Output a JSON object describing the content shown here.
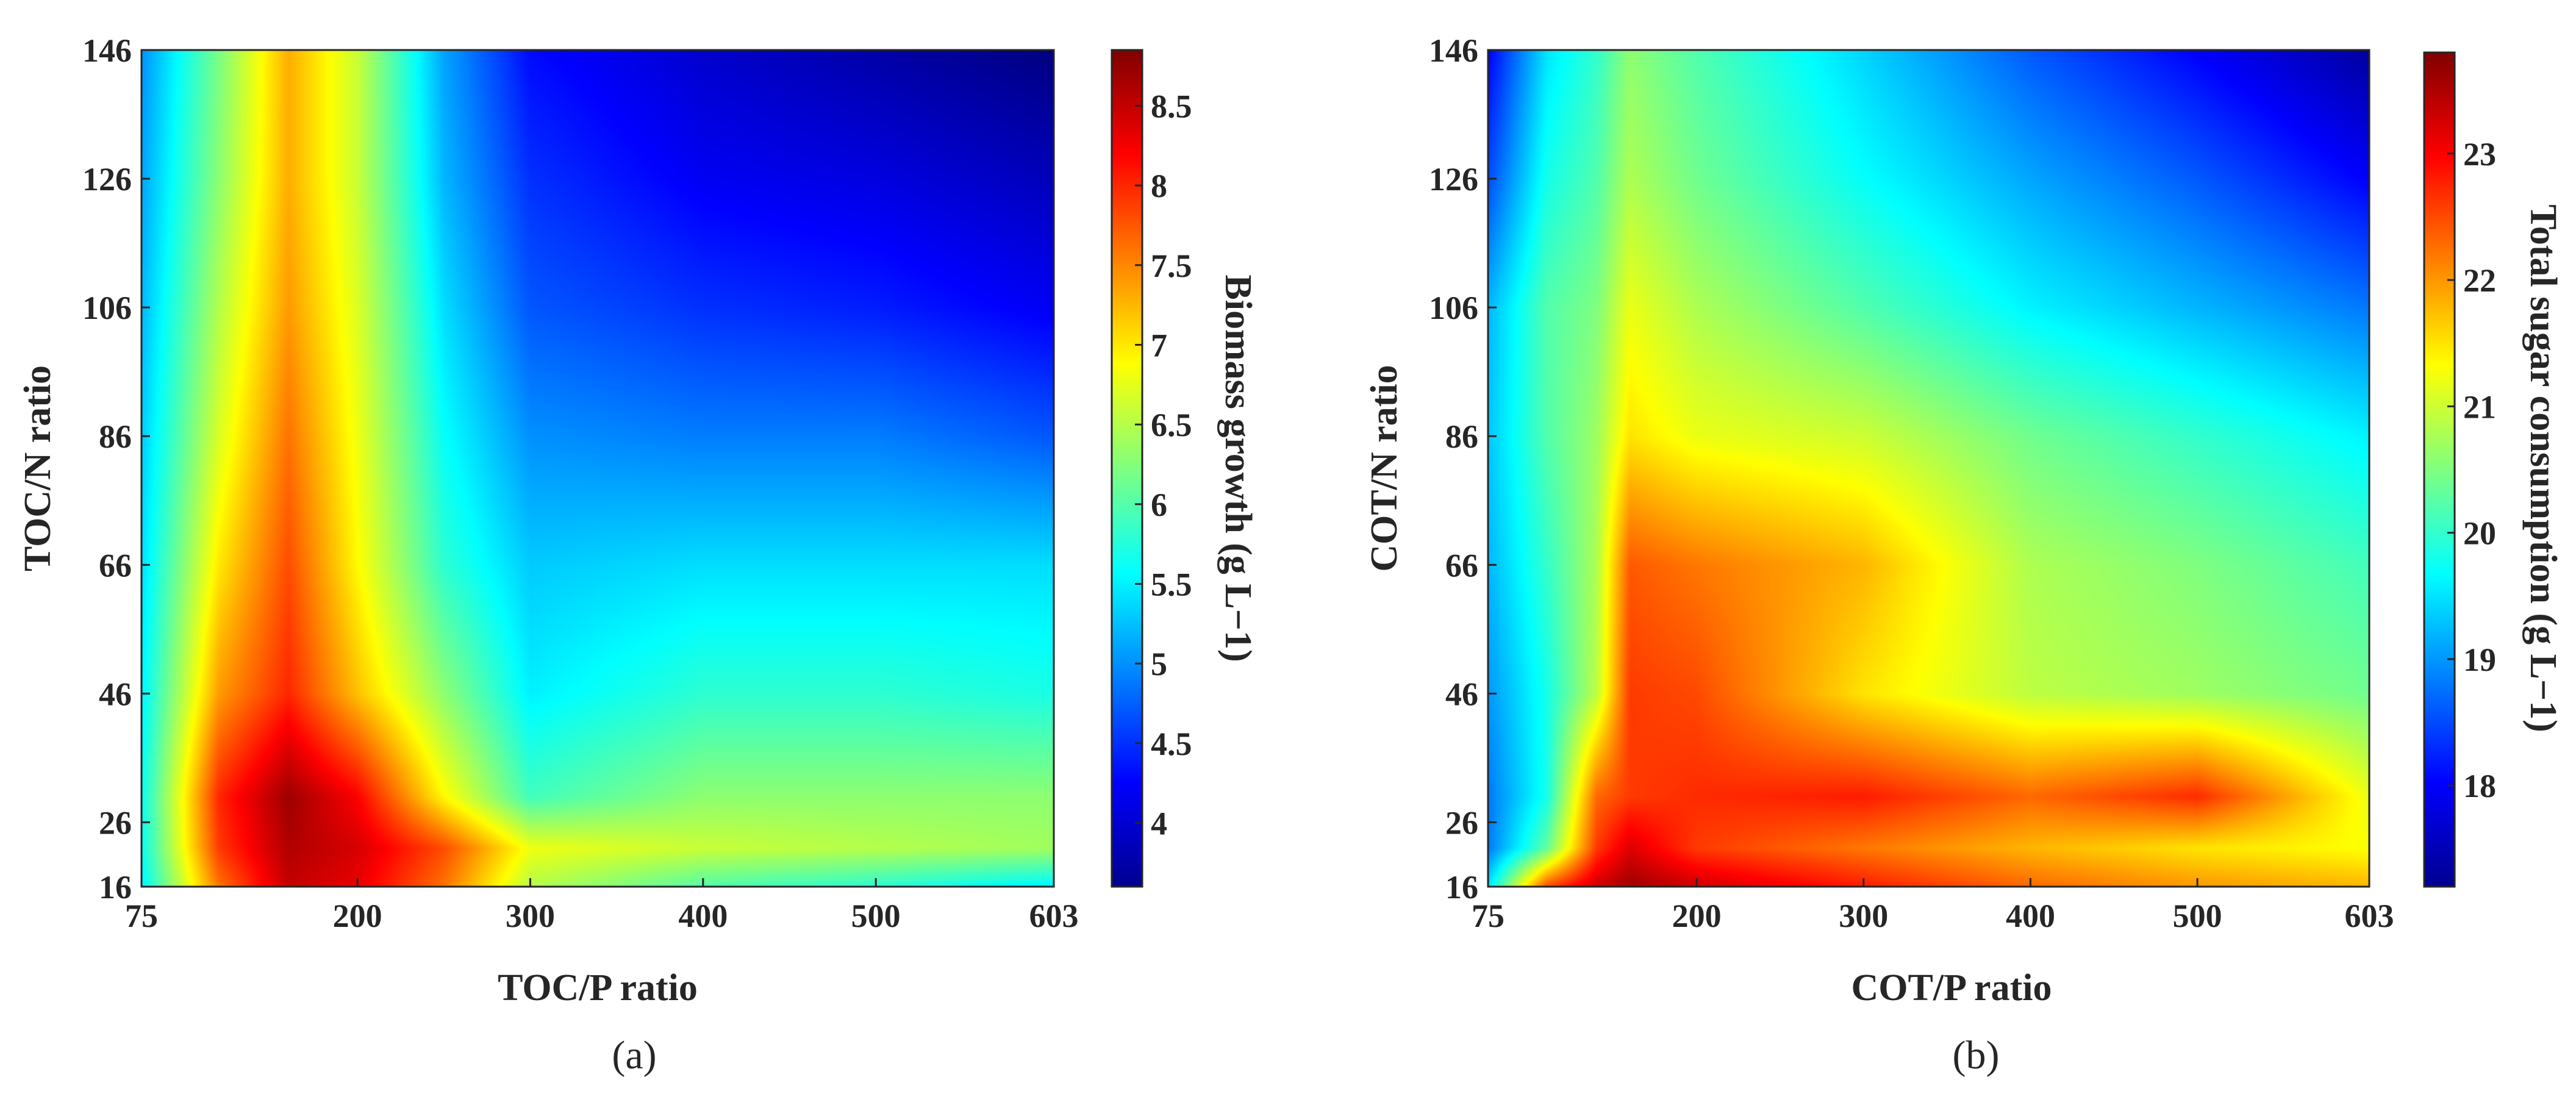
{
  "chart_data": [
    {
      "type": "heatmap",
      "panel_label": "(a)",
      "xlabel": "TOC/P ratio",
      "ylabel": "TOC/N ratio",
      "colorbar_label": "Biomass growth (g L−1)",
      "x_ticks": [
        75,
        200,
        300,
        400,
        500,
        603
      ],
      "y_ticks": [
        16,
        26,
        46,
        66,
        86,
        106,
        126,
        146
      ],
      "xlim": [
        75,
        603
      ],
      "ylim": [
        16,
        146
      ],
      "colorbar_ticks": [
        "4",
        "4.5",
        "5",
        "5.5",
        "6",
        "6.5",
        "7",
        "7.5",
        "8",
        "8.5"
      ],
      "colorbar_range": [
        3.6,
        8.85
      ],
      "colormap": "jet",
      "x_grid": [
        75,
        120,
        160,
        200,
        250,
        300,
        400,
        500,
        603
      ],
      "y_grid": [
        16,
        22,
        30,
        46,
        66,
        86,
        106,
        126,
        146
      ],
      "z": [
        [
          5.5,
          7.6,
          8.5,
          8.3,
          7.6,
          6.5,
          6.0,
          5.8,
          5.5
        ],
        [
          5.6,
          7.9,
          8.6,
          8.4,
          7.8,
          6.8,
          6.6,
          6.5,
          6.4
        ],
        [
          5.6,
          8.0,
          8.7,
          8.2,
          6.9,
          5.9,
          6.3,
          6.3,
          6.3
        ],
        [
          5.5,
          7.4,
          8.0,
          7.2,
          6.3,
          5.5,
          5.8,
          5.8,
          5.7
        ],
        [
          5.4,
          7.0,
          7.8,
          6.9,
          5.8,
          5.3,
          5.4,
          5.4,
          5.4
        ],
        [
          5.3,
          6.7,
          7.6,
          6.8,
          5.6,
          5.0,
          4.9,
          4.9,
          4.7
        ],
        [
          5.2,
          6.5,
          7.4,
          6.7,
          5.4,
          4.7,
          4.5,
          4.4,
          4.2
        ],
        [
          5.1,
          6.3,
          7.3,
          6.6,
          5.2,
          4.5,
          4.2,
          4.1,
          3.9
        ],
        [
          5.0,
          6.2,
          7.3,
          6.6,
          5.1,
          4.3,
          4.0,
          3.8,
          3.6
        ]
      ]
    },
    {
      "type": "heatmap",
      "panel_label": "(b)",
      "xlabel": "COT/P ratio",
      "ylabel": "COT/N ratio",
      "colorbar_label": "Total sugar consumption (g L−1)",
      "x_ticks": [
        75,
        200,
        300,
        400,
        500,
        603
      ],
      "y_ticks": [
        16,
        26,
        46,
        66,
        86,
        106,
        126,
        146
      ],
      "xlim": [
        75,
        603
      ],
      "ylim": [
        16,
        146
      ],
      "colorbar_ticks": [
        "18",
        "19",
        "20",
        "21",
        "22",
        "23"
      ],
      "colorbar_range": [
        17.2,
        23.8
      ],
      "colormap": "jet",
      "x_grid": [
        75,
        110,
        140,
        160,
        200,
        300,
        400,
        500,
        603
      ],
      "y_grid": [
        16,
        22,
        30,
        46,
        66,
        86,
        106,
        126,
        146
      ],
      "z": [
        [
          19.5,
          22.5,
          23.3,
          23.6,
          23.3,
          22.8,
          22.3,
          22.0,
          21.8
        ],
        [
          18.8,
          20.3,
          22.6,
          23.2,
          22.6,
          22.2,
          21.8,
          21.5,
          21.3
        ],
        [
          18.8,
          19.8,
          22.3,
          22.6,
          22.7,
          22.8,
          22.3,
          22.7,
          21.2
        ],
        [
          19.0,
          19.8,
          20.9,
          22.6,
          22.5,
          21.5,
          20.9,
          20.7,
          20.4
        ],
        [
          19.2,
          20.0,
          20.8,
          22.4,
          22.2,
          21.8,
          20.8,
          20.5,
          20.1
        ],
        [
          19.3,
          20.2,
          20.7,
          21.5,
          21.2,
          21.0,
          20.4,
          20.0,
          19.6
        ],
        [
          19.2,
          20.2,
          20.5,
          21.2,
          20.8,
          20.2,
          19.6,
          19.2,
          18.8
        ],
        [
          18.5,
          19.8,
          20.2,
          20.8,
          20.4,
          19.7,
          19.1,
          18.6,
          18.0
        ],
        [
          18.0,
          19.5,
          20.0,
          20.6,
          20.2,
          19.4,
          18.6,
          18.0,
          17.4
        ]
      ]
    }
  ]
}
